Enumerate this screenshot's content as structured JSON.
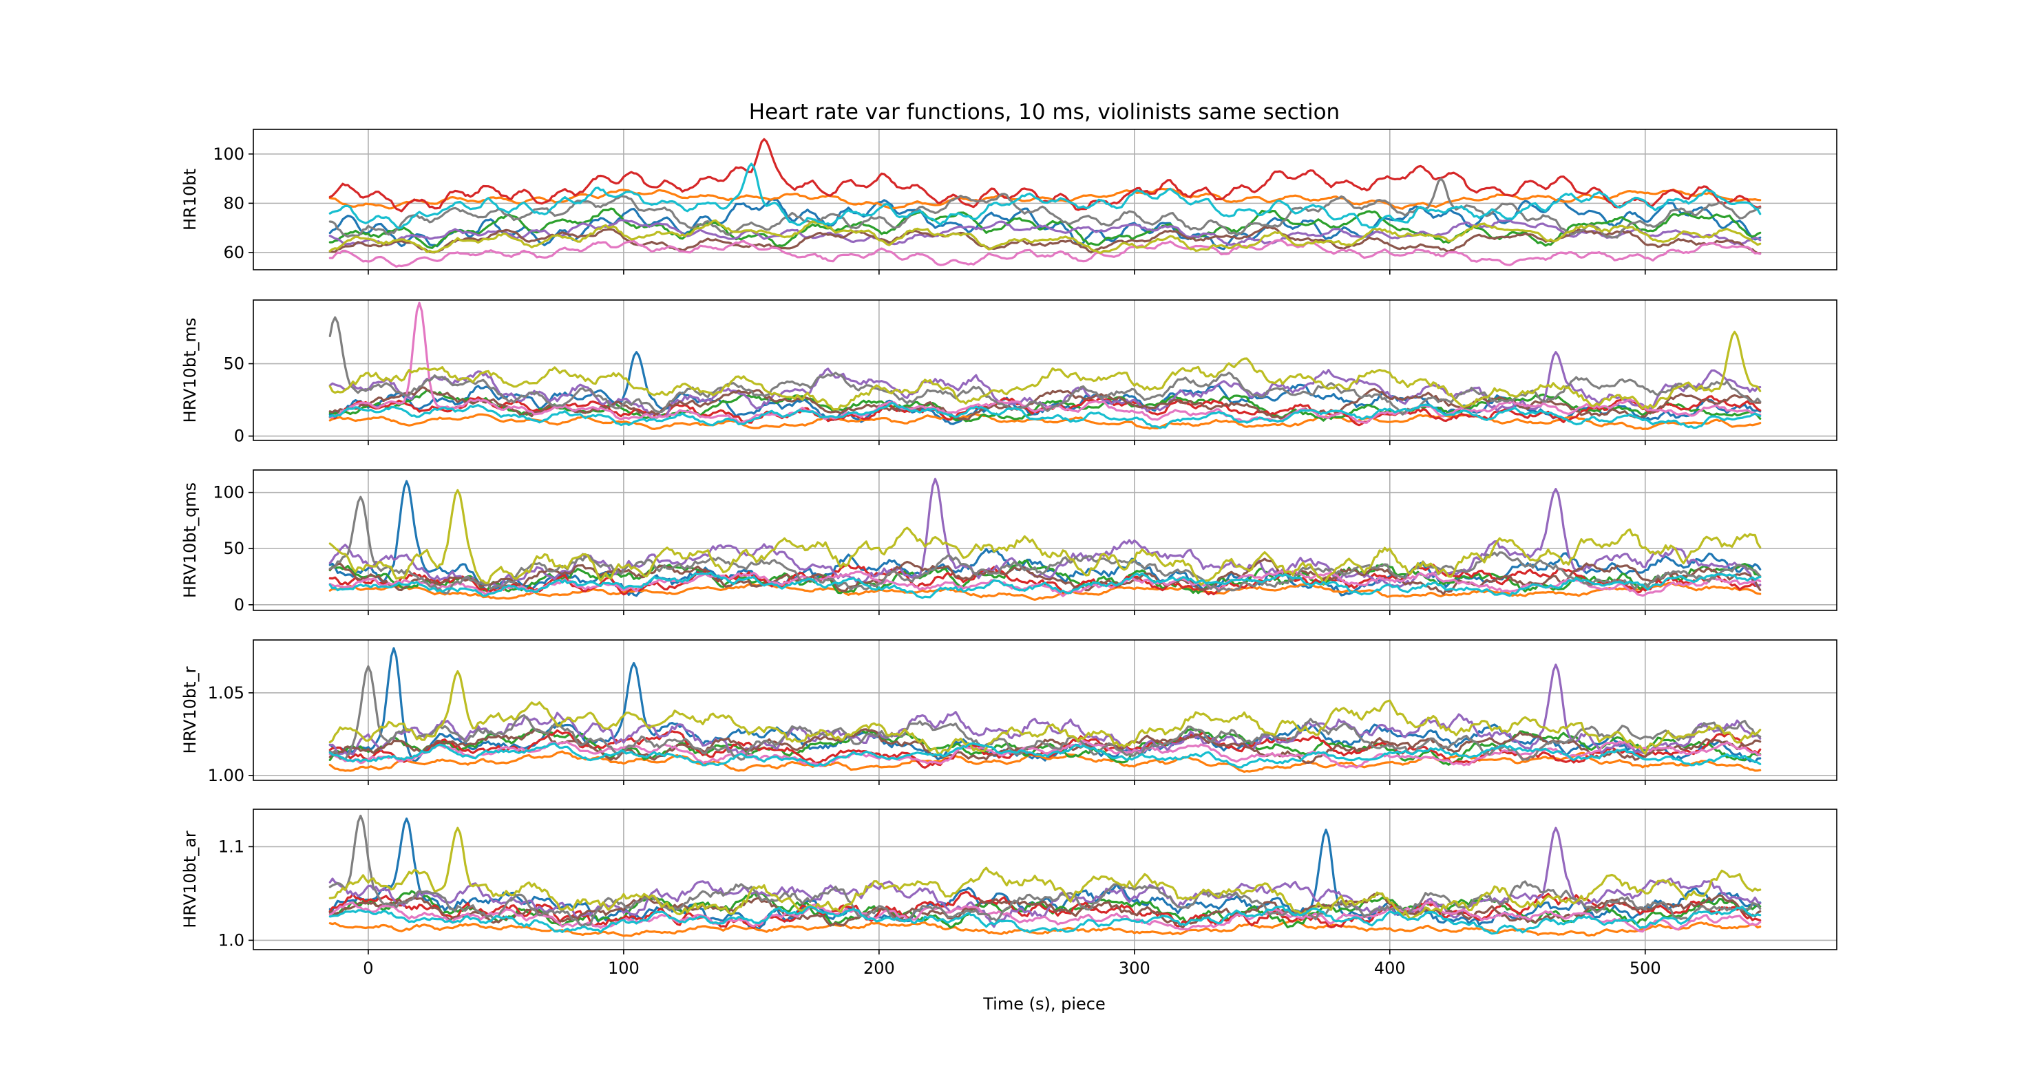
{
  "figure": {
    "title": "Heart rate var functions, 10 ms, violinists same section",
    "xlabel": "Time (s), piece"
  },
  "chart_data": {
    "type": "line",
    "x_range": [
      -15,
      545
    ],
    "xlim": [
      -45,
      575
    ],
    "x_ticks": [
      0,
      100,
      200,
      300,
      400,
      500
    ],
    "x_tick_labels": [
      "0",
      "100",
      "200",
      "300",
      "400",
      "500"
    ],
    "grid": true,
    "legend": "none",
    "series_colors": [
      "#1f77b4",
      "#ff7f0e",
      "#2ca02c",
      "#d62728",
      "#9467bd",
      "#8c564b",
      "#e377c2",
      "#7f7f7f",
      "#bcbd22",
      "#17becf"
    ],
    "panels": [
      {
        "ylabel": "HR10bt",
        "ylim": [
          53,
          110
        ],
        "y_ticks": [
          60,
          80,
          100
        ],
        "y_tick_labels": [
          "60",
          "80",
          "100"
        ],
        "series_base": [
          72,
          82,
          70,
          86,
          68,
          65,
          60,
          75,
          66,
          78
        ],
        "series_amp": [
          8,
          3,
          6,
          7,
          4,
          4,
          4,
          7,
          5,
          6
        ],
        "series_noise": [
          2,
          1,
          2,
          2,
          1.5,
          1.5,
          1.5,
          2,
          2,
          2
        ],
        "peaks": [
          {
            "series": 3,
            "x": 155,
            "value": 106
          },
          {
            "series": 9,
            "x": 150,
            "value": 96
          },
          {
            "series": 6,
            "x": 22,
            "value": 58
          },
          {
            "series": 7,
            "x": 420,
            "value": 90
          }
        ]
      },
      {
        "ylabel": "HRV10bt_ms",
        "ylim": [
          -3,
          94
        ],
        "y_ticks": [
          0,
          50
        ],
        "y_tick_labels": [
          "0",
          "50"
        ],
        "series_base": [
          22,
          10,
          20,
          18,
          30,
          22,
          17,
          30,
          35,
          14
        ],
        "series_amp": [
          10,
          4,
          8,
          7,
          12,
          8,
          6,
          10,
          12,
          6
        ],
        "series_noise": [
          5,
          2,
          4,
          4,
          6,
          4,
          3,
          5,
          6,
          3
        ],
        "peaks": [
          {
            "series": 6,
            "x": 20,
            "value": 92
          },
          {
            "series": 7,
            "x": -13,
            "value": 82
          },
          {
            "series": 8,
            "x": 535,
            "value": 72
          },
          {
            "series": 0,
            "x": 105,
            "value": 58
          },
          {
            "series": 4,
            "x": 465,
            "value": 58
          }
        ]
      },
      {
        "ylabel": "HRV10bt_qms",
        "ylim": [
          -5,
          120
        ],
        "y_ticks": [
          0,
          50,
          100
        ],
        "y_tick_labels": [
          "0",
          "50",
          "100"
        ],
        "series_base": [
          28,
          12,
          24,
          22,
          35,
          25,
          20,
          30,
          42,
          18
        ],
        "series_amp": [
          14,
          5,
          10,
          10,
          16,
          10,
          8,
          14,
          18,
          8
        ],
        "series_noise": [
          8,
          3,
          7,
          7,
          10,
          6,
          5,
          8,
          10,
          5
        ],
        "peaks": [
          {
            "series": 0,
            "x": 15,
            "value": 110
          },
          {
            "series": 4,
            "x": 222,
            "value": 112
          },
          {
            "series": 8,
            "x": 35,
            "value": 102
          },
          {
            "series": 7,
            "x": -3,
            "value": 96
          },
          {
            "series": 4,
            "x": 465,
            "value": 103
          }
        ]
      },
      {
        "ylabel": "HRV10bt_r",
        "ylim": [
          0.997,
          1.082
        ],
        "y_ticks": [
          1.0,
          1.05
        ],
        "y_tick_labels": [
          "1.00",
          "1.05"
        ],
        "series_base": [
          1.02,
          1.008,
          1.018,
          1.016,
          1.025,
          1.018,
          1.013,
          1.022,
          1.028,
          1.012
        ],
        "series_amp": [
          0.009,
          0.004,
          0.008,
          0.008,
          0.01,
          0.007,
          0.006,
          0.009,
          0.011,
          0.005
        ],
        "series_noise": [
          0.005,
          0.002,
          0.004,
          0.004,
          0.006,
          0.004,
          0.003,
          0.005,
          0.006,
          0.003
        ],
        "peaks": [
          {
            "series": 0,
            "x": 10,
            "value": 1.077
          },
          {
            "series": 0,
            "x": 104,
            "value": 1.068
          },
          {
            "series": 7,
            "x": 0,
            "value": 1.066
          },
          {
            "series": 4,
            "x": 465,
            "value": 1.067
          },
          {
            "series": 8,
            "x": 35,
            "value": 1.063
          }
        ]
      },
      {
        "ylabel": "HRV10bt_ar",
        "ylim": [
          0.99,
          1.14
        ],
        "y_ticks": [
          1.0,
          1.1
        ],
        "y_tick_labels": [
          "1.0",
          "1.1"
        ],
        "series_base": [
          1.035,
          1.012,
          1.032,
          1.03,
          1.045,
          1.032,
          1.025,
          1.04,
          1.05,
          1.022
        ],
        "series_amp": [
          0.016,
          0.006,
          0.014,
          0.014,
          0.018,
          0.012,
          0.01,
          0.016,
          0.02,
          0.01
        ],
        "series_noise": [
          0.01,
          0.004,
          0.009,
          0.009,
          0.011,
          0.008,
          0.006,
          0.01,
          0.012,
          0.006
        ],
        "peaks": [
          {
            "series": 7,
            "x": -3,
            "value": 1.133
          },
          {
            "series": 0,
            "x": 15,
            "value": 1.13
          },
          {
            "series": 8,
            "x": 35,
            "value": 1.12
          },
          {
            "series": 0,
            "x": 375,
            "value": 1.118
          },
          {
            "series": 4,
            "x": 465,
            "value": 1.12
          }
        ]
      }
    ]
  }
}
